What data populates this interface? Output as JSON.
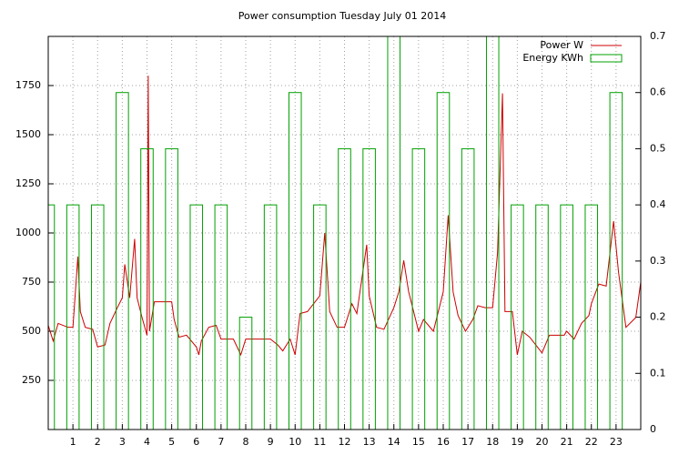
{
  "chart_data": {
    "type": "line",
    "title": "Power consumption Tuesday July 01 2014",
    "x": [
      0,
      0.2,
      0.4,
      0.8,
      1.0,
      1.2,
      1.3,
      1.5,
      1.8,
      2.0,
      2.3,
      2.5,
      2.8,
      3.0,
      3.1,
      3.3,
      3.5,
      3.6,
      3.8,
      4.0,
      4.05,
      4.1,
      4.3,
      4.6,
      5.0,
      5.1,
      5.3,
      5.6,
      6.0,
      6.1,
      6.2,
      6.5,
      6.8,
      7.0,
      7.5,
      7.8,
      8.0,
      8.5,
      9.0,
      9.3,
      9.5,
      9.8,
      10.0,
      10.2,
      10.5,
      11.0,
      11.2,
      11.4,
      11.7,
      12.0,
      12.3,
      12.5,
      12.9,
      13.0,
      13.3,
      13.6,
      14.0,
      14.2,
      14.4,
      14.6,
      15.0,
      15.2,
      15.6,
      16.0,
      16.2,
      16.4,
      16.6,
      16.9,
      17.2,
      17.4,
      17.7,
      18.0,
      18.2,
      18.4,
      18.5,
      18.8,
      19.0,
      19.2,
      19.5,
      20.0,
      20.3,
      20.6,
      20.9,
      21.0,
      21.3,
      21.6,
      21.9,
      22.0,
      22.3,
      22.6,
      22.9,
      23.1,
      23.4,
      23.8,
      24.0
    ],
    "series": [
      {
        "name": "Power W",
        "color": "#cc0000",
        "values": [
          530,
          450,
          540,
          520,
          520,
          880,
          600,
          520,
          510,
          420,
          430,
          540,
          620,
          670,
          840,
          670,
          970,
          670,
          570,
          480,
          1800,
          500,
          650,
          650,
          650,
          560,
          470,
          480,
          420,
          380,
          450,
          520,
          530,
          460,
          460,
          380,
          460,
          460,
          460,
          430,
          400,
          460,
          380,
          590,
          600,
          680,
          1000,
          600,
          520,
          520,
          640,
          590,
          940,
          680,
          520,
          510,
          620,
          700,
          860,
          700,
          500,
          560,
          500,
          700,
          1090,
          700,
          580,
          500,
          560,
          630,
          620,
          620,
          900,
          1710,
          600,
          600,
          380,
          500,
          470,
          390,
          480,
          480,
          480,
          500,
          460,
          540,
          580,
          640,
          740,
          730,
          1060,
          800,
          520,
          570,
          750
        ]
      },
      {
        "name": "Energy KWh",
        "color": "#00a000",
        "type": "bar",
        "axis": "y2",
        "x": [
          0,
          1,
          2,
          3,
          4,
          5,
          6,
          7,
          8,
          9,
          10,
          11,
          12,
          13,
          14,
          15,
          16,
          17,
          18,
          19,
          20,
          21,
          22,
          23
        ],
        "values": [
          0.4,
          0.4,
          0.4,
          0.6,
          0.5,
          0.5,
          0.4,
          0.4,
          0.2,
          0.4,
          0.6,
          0.4,
          0.5,
          0.5,
          0.7,
          0.5,
          0.6,
          0.5,
          0.7,
          0.4,
          0.4,
          0.4,
          0.4,
          0.6
        ]
      }
    ],
    "xlim": [
      0,
      24
    ],
    "xticks": [
      1,
      2,
      3,
      4,
      5,
      6,
      7,
      8,
      9,
      10,
      11,
      12,
      13,
      14,
      15,
      16,
      17,
      18,
      19,
      20,
      21,
      22,
      23
    ],
    "ylim": [
      0,
      2000
    ],
    "yticks": [
      250,
      500,
      750,
      1000,
      1250,
      1500,
      1750
    ],
    "y2lim": [
      0,
      0.7
    ],
    "y2ticks": [
      0,
      0.1,
      0.2,
      0.3,
      0.4,
      0.5,
      0.6,
      0.7
    ],
    "grid": true,
    "legend": "upper right"
  }
}
